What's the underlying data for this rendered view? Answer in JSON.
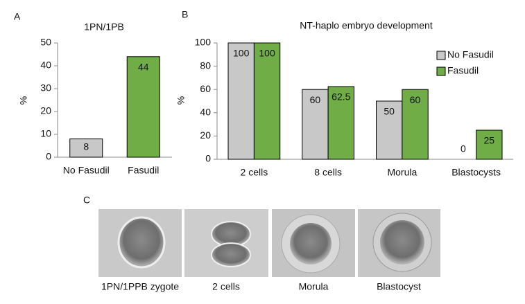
{
  "chart_data": [
    {
      "type": "bar",
      "panel": "A",
      "title": "1PN/1PB",
      "ylabel": "%",
      "categories": [
        "No Fasudil",
        "Fasudil"
      ],
      "values": [
        8,
        44
      ],
      "colors": [
        "#c8c8c8",
        "#70ad47"
      ],
      "ylim": [
        0,
        50
      ],
      "yticks": [
        0,
        10,
        20,
        30,
        40,
        50
      ],
      "grid": false
    },
    {
      "type": "bar",
      "panel": "B",
      "title": "NT-haplo embryo development",
      "ylabel": "%",
      "categories": [
        "2 cells",
        "8 cells",
        "Morula",
        "Blastocysts"
      ],
      "series": [
        {
          "name": "No Fasudil",
          "color": "#c8c8c8",
          "values": [
            100,
            60,
            50,
            0
          ]
        },
        {
          "name": "Fasudil",
          "color": "#70ad47",
          "values": [
            100,
            62.5,
            60,
            25
          ]
        }
      ],
      "ylim": [
        0,
        100
      ],
      "yticks": [
        0,
        20,
        40,
        60,
        80,
        100
      ],
      "grid": false,
      "legend": "upper right"
    }
  ],
  "panel_c": {
    "label": "C",
    "captions": [
      "1PN/1PPB zygote",
      "2 cells",
      "Morula",
      "Blastocyst"
    ]
  }
}
